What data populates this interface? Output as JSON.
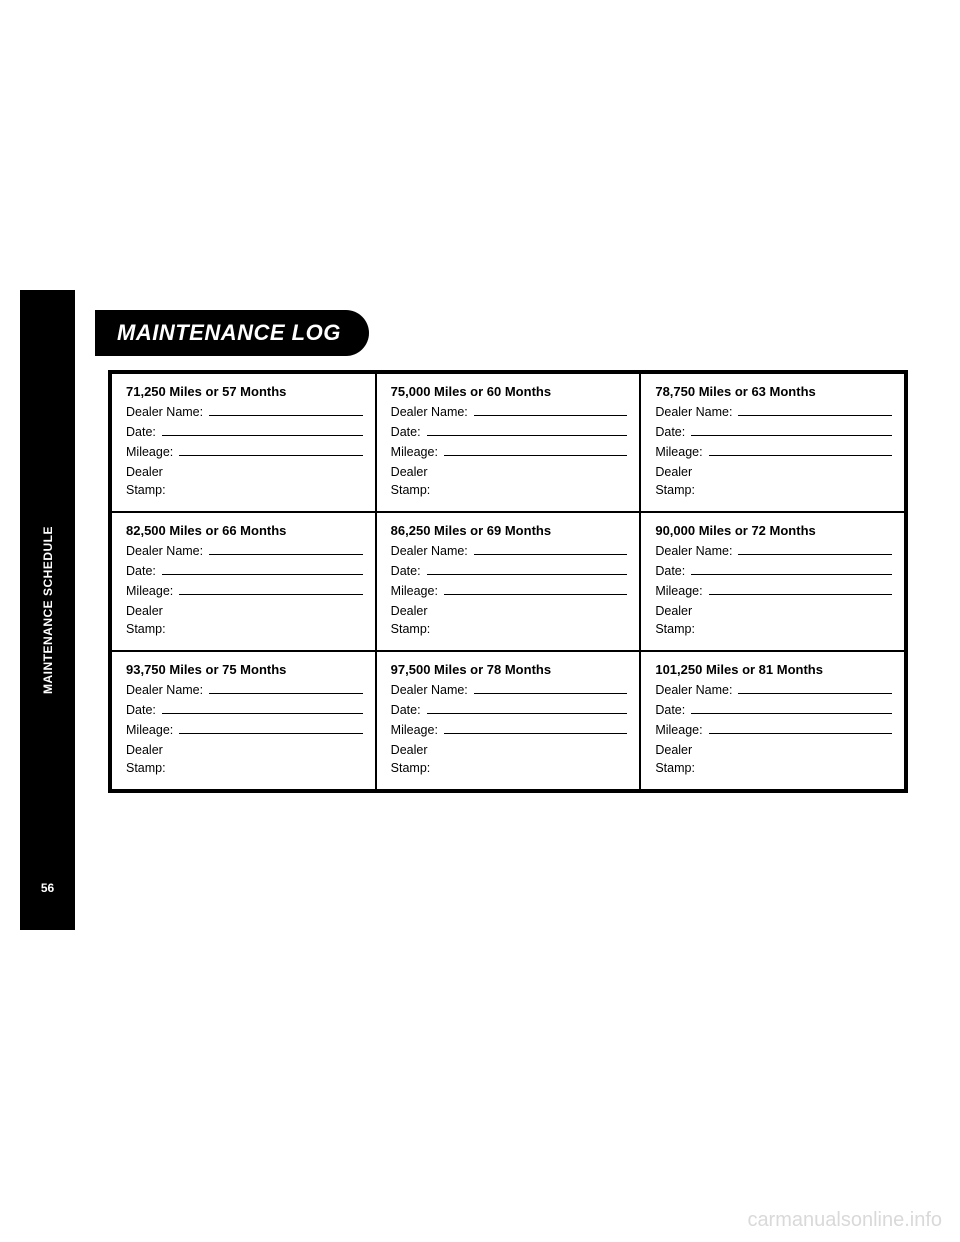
{
  "sidebar": {
    "label": "MAINTENANCE SCHEDULE",
    "page": "56"
  },
  "title": "MAINTENANCE LOG",
  "fields": {
    "dealerName": "Dealer Name:",
    "date": "Date:",
    "mileage": "Mileage:",
    "dealer": "Dealer",
    "stamp": "Stamp:"
  },
  "cells": [
    [
      "71,250 Miles or 57 Months",
      "75,000 Miles or 60 Months",
      "78,750 Miles or 63 Months"
    ],
    [
      "82,500 Miles or 66 Months",
      "86,250 Miles or 69 Months",
      "90,000 Miles or 72 Months"
    ],
    [
      "93,750 Miles or 75 Months",
      "97,500 Miles or 78 Months",
      "101,250 Miles or 81 Months"
    ]
  ],
  "watermark": "carmanualsonline.info"
}
